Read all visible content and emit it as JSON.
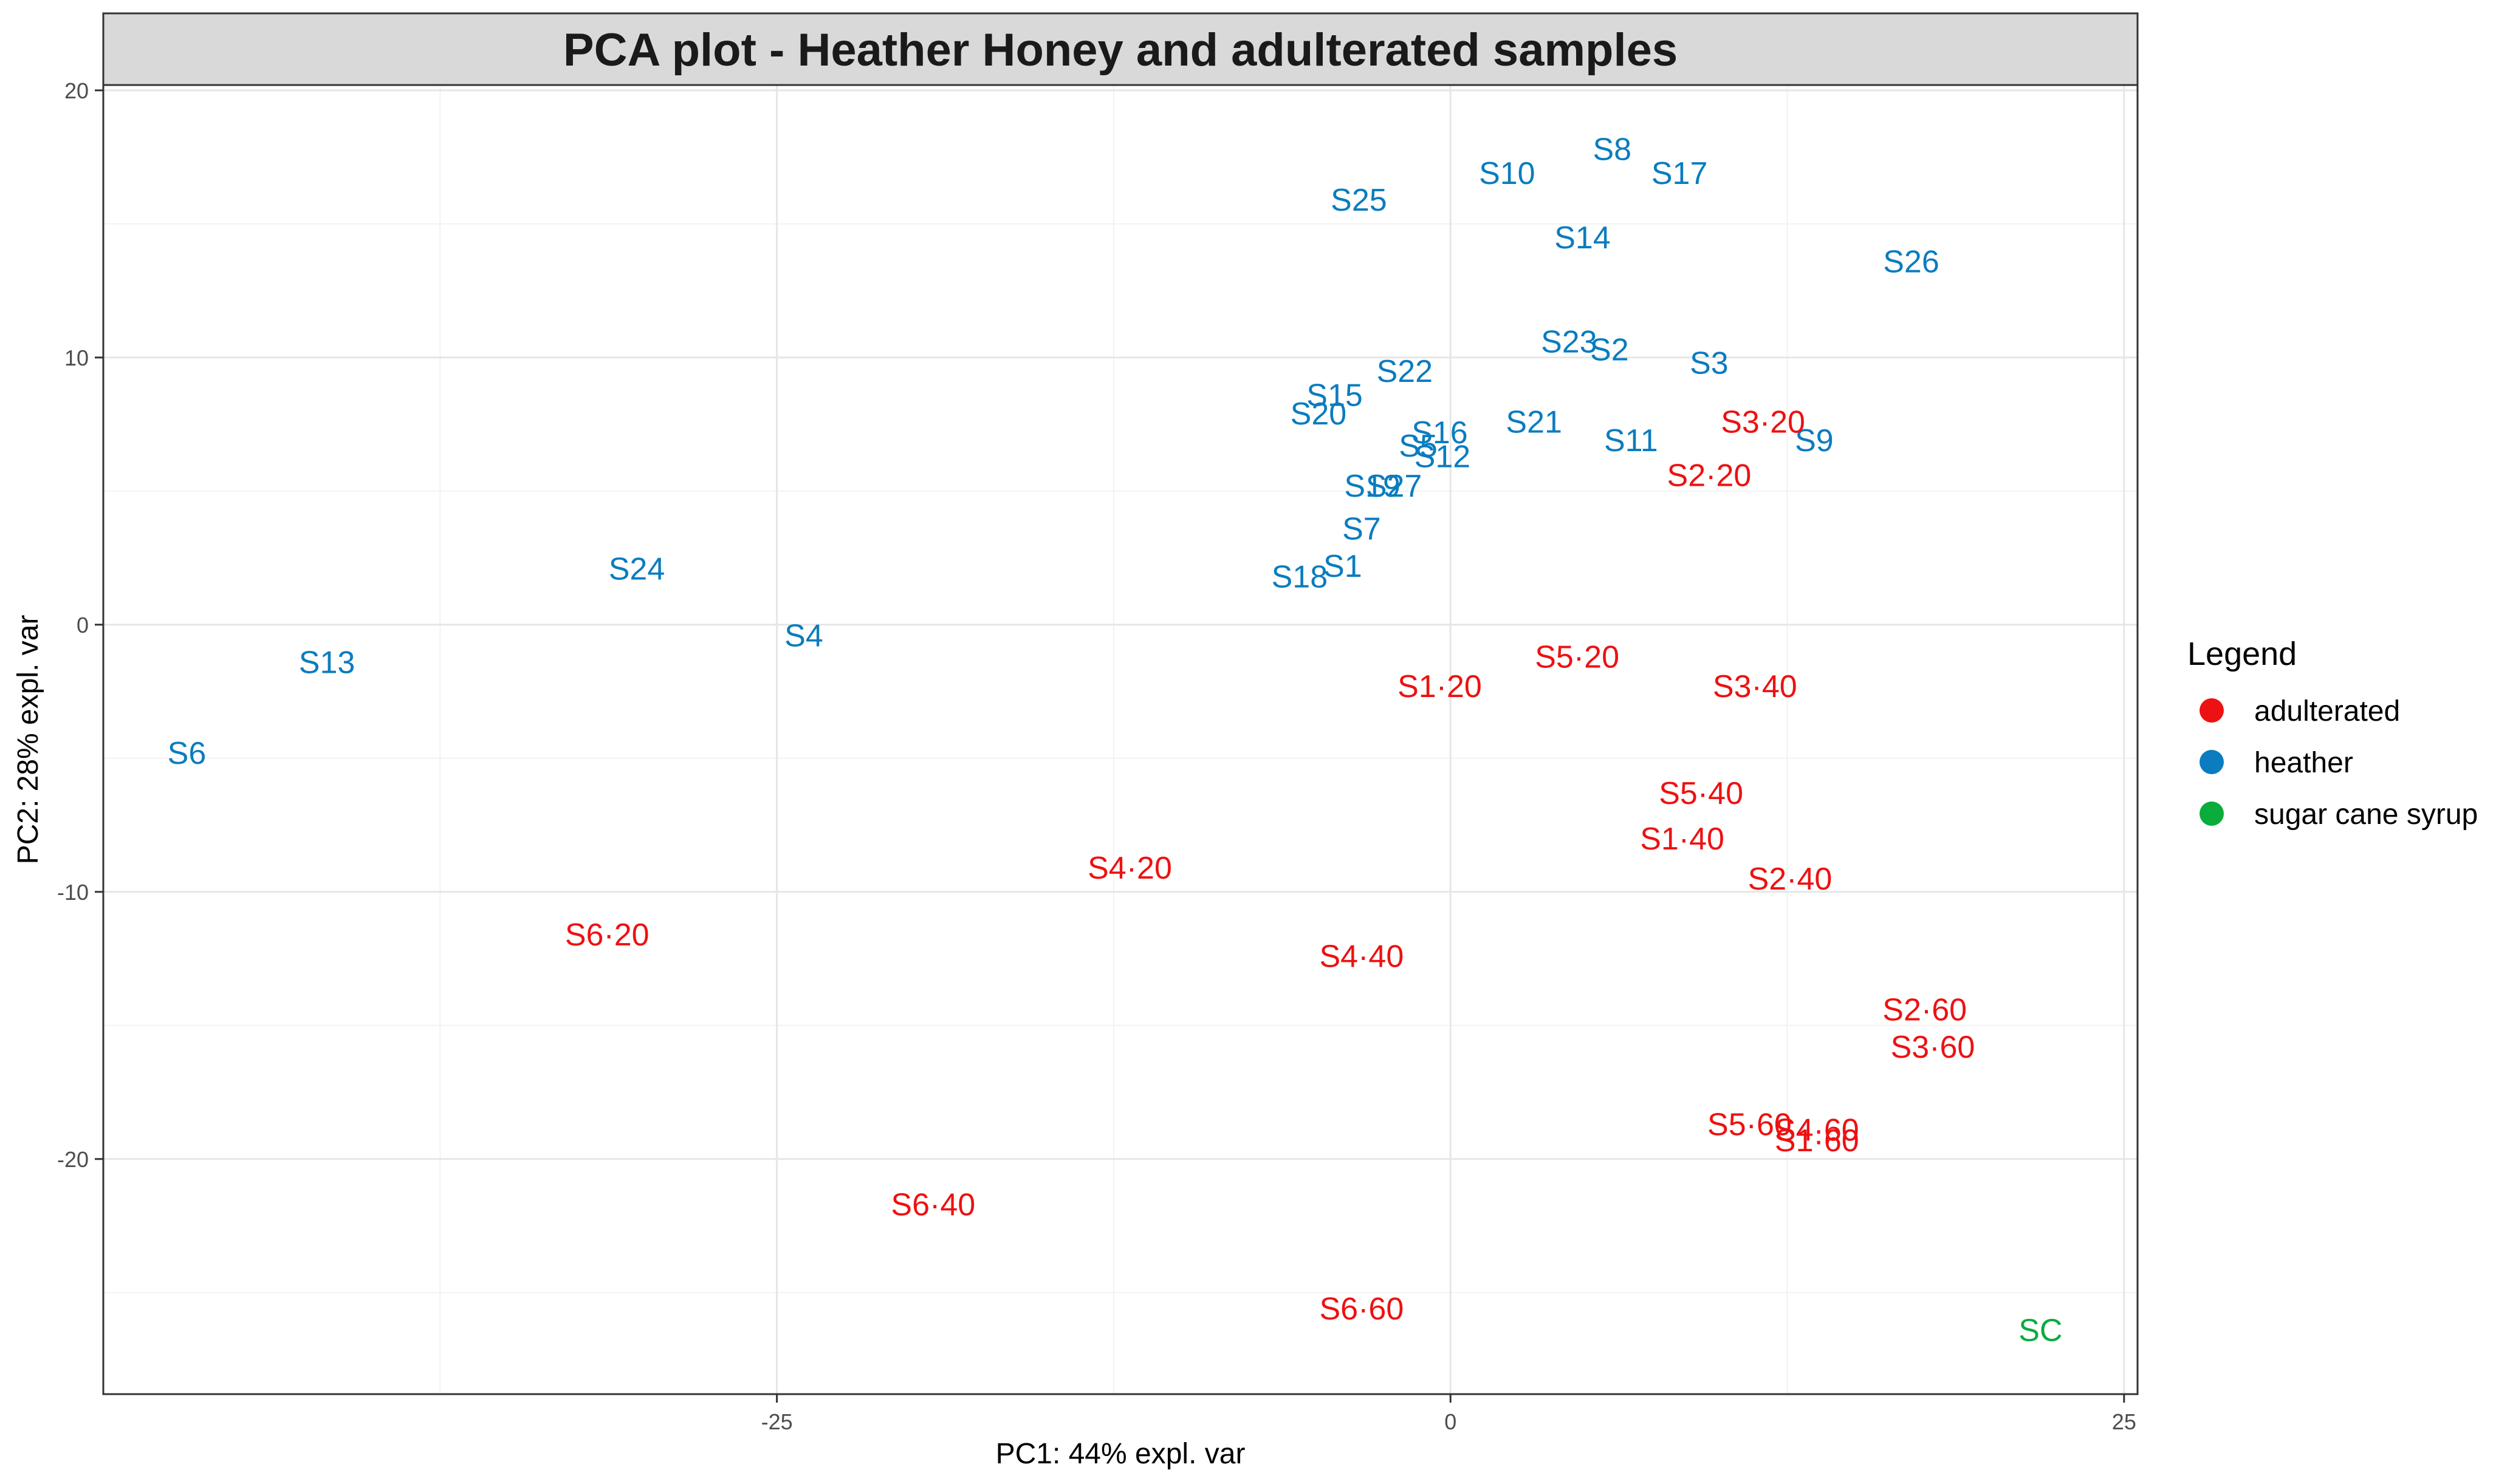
{
  "chart_data": {
    "type": "scatter",
    "title": "PCA plot - Heather Honey and adulterated samples",
    "xlabel": "PC1: 44% expl. var",
    "ylabel": "PC2: 28% expl. var",
    "xlim": [
      -50.0,
      25.5
    ],
    "ylim": [
      -28.8,
      20.2
    ],
    "xticks": [
      -25,
      0,
      25
    ],
    "yticks": [
      -20,
      -10,
      0,
      10,
      20
    ],
    "grid": true,
    "legend": {
      "title": "Legend",
      "placement": "right",
      "entries": [
        {
          "label": "adulterated",
          "color": "#ee1111"
        },
        {
          "label": "heather",
          "color": "#0a7cbf"
        },
        {
          "label": "sugar cane syrup",
          "color": "#0aac3c"
        }
      ]
    },
    "series": [
      {
        "name": "heather",
        "color": "#0a7cbf",
        "points": [
          {
            "label": "S8",
            "x": 6.0,
            "y": 17.8
          },
          {
            "label": "S10",
            "x": 2.1,
            "y": 16.9
          },
          {
            "label": "S17",
            "x": 8.5,
            "y": 16.9
          },
          {
            "label": "S25",
            "x": -3.4,
            "y": 15.9
          },
          {
            "label": "S14",
            "x": 4.9,
            "y": 14.5
          },
          {
            "label": "S26",
            "x": 17.1,
            "y": 13.6
          },
          {
            "label": "S23",
            "x": 4.4,
            "y": 10.6
          },
          {
            "label": "S2",
            "x": 5.9,
            "y": 10.3
          },
          {
            "label": "S3",
            "x": 9.6,
            "y": 9.8
          },
          {
            "label": "S22",
            "x": -1.7,
            "y": 9.5
          },
          {
            "label": "S15",
            "x": -4.3,
            "y": 8.6
          },
          {
            "label": "S20",
            "x": -4.9,
            "y": 7.9
          },
          {
            "label": "S21",
            "x": 3.1,
            "y": 7.6
          },
          {
            "label": "S16",
            "x": -0.4,
            "y": 7.2
          },
          {
            "label": "S9",
            "x": 13.5,
            "y": 6.9
          },
          {
            "label": "S11",
            "x": 6.7,
            "y": 6.9
          },
          {
            "label": "S5",
            "x": -1.2,
            "y": 6.7
          },
          {
            "label": "S12",
            "x": -0.3,
            "y": 6.3
          },
          {
            "label": "S19",
            "x": -2.9,
            "y": 5.2
          },
          {
            "label": "S27",
            "x": -2.1,
            "y": 5.2
          },
          {
            "label": "S7",
            "x": -3.3,
            "y": 3.6
          },
          {
            "label": "S1",
            "x": -4.0,
            "y": 2.2
          },
          {
            "label": "S18",
            "x": -5.6,
            "y": 1.8
          },
          {
            "label": "S24",
            "x": -30.2,
            "y": 2.1
          },
          {
            "label": "S4",
            "x": -24.0,
            "y": -0.4
          },
          {
            "label": "S13",
            "x": -41.7,
            "y": -1.4
          },
          {
            "label": "S6",
            "x": -46.9,
            "y": -4.8
          }
        ]
      },
      {
        "name": "adulterated",
        "color": "#ee1111",
        "points": [
          {
            "label": "S3·20",
            "x": 11.6,
            "y": 7.6
          },
          {
            "label": "S2·20",
            "x": 9.6,
            "y": 5.6
          },
          {
            "label": "S5·20",
            "x": 4.7,
            "y": -1.2
          },
          {
            "label": "S1·20",
            "x": -0.4,
            "y": -2.3
          },
          {
            "label": "S3·40",
            "x": 11.3,
            "y": -2.3
          },
          {
            "label": "S5·40",
            "x": 9.3,
            "y": -6.3
          },
          {
            "label": "S1·40",
            "x": 8.6,
            "y": -8.0
          },
          {
            "label": "S2·40",
            "x": 12.6,
            "y": -9.5
          },
          {
            "label": "S4·20",
            "x": -11.9,
            "y": -9.1
          },
          {
            "label": "S6·20",
            "x": -31.3,
            "y": -11.6
          },
          {
            "label": "S4·40",
            "x": -3.3,
            "y": -12.4
          },
          {
            "label": "S2·60",
            "x": 17.6,
            "y": -14.4
          },
          {
            "label": "S3·60",
            "x": 17.9,
            "y": -15.8
          },
          {
            "label": "S5·60",
            "x": 11.1,
            "y": -18.7
          },
          {
            "label": "S4·60",
            "x": 13.6,
            "y": -18.9
          },
          {
            "label": "S1·60",
            "x": 13.6,
            "y": -19.3
          },
          {
            "label": "S6·40",
            "x": -19.2,
            "y": -21.7
          },
          {
            "label": "S6·60",
            "x": -3.3,
            "y": -25.6
          }
        ]
      },
      {
        "name": "sugar cane syrup",
        "color": "#0aac3c",
        "points": [
          {
            "label": "SC",
            "x": 21.9,
            "y": -26.4
          }
        ]
      }
    ]
  }
}
